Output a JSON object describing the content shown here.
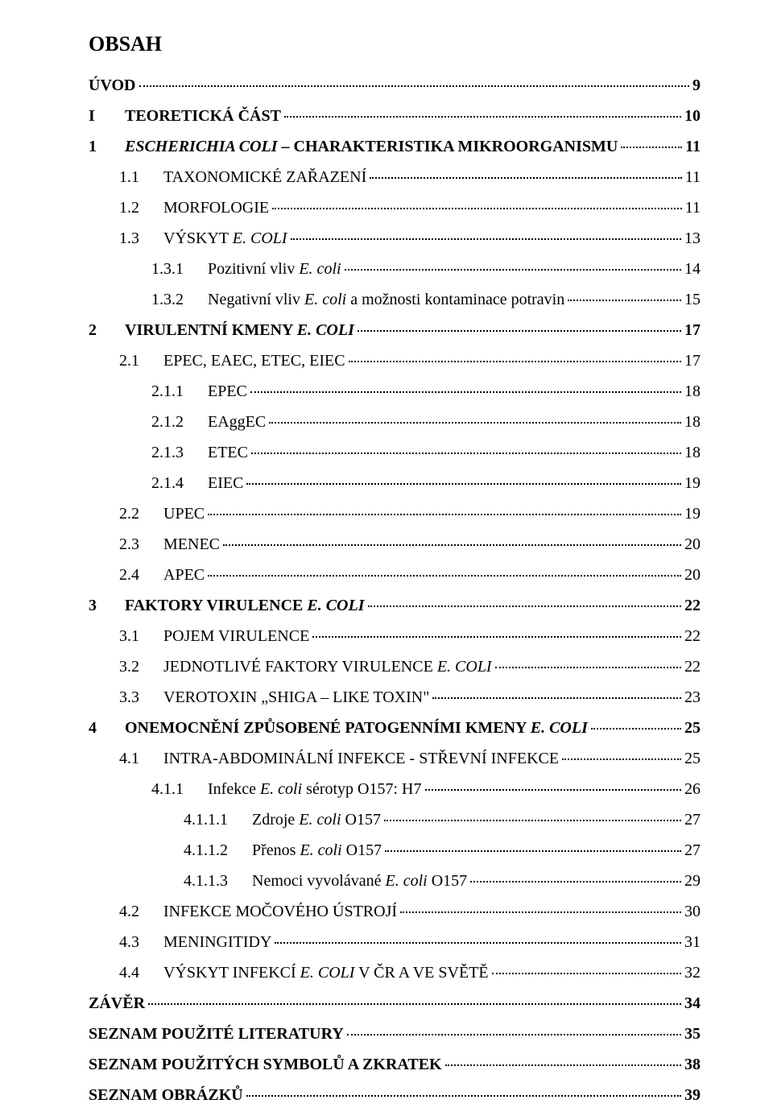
{
  "colors": {
    "text": "#000000",
    "background": "#ffffff"
  },
  "typography": {
    "font_family": "Times New Roman",
    "heading_size": 26,
    "entry_size": 20
  },
  "heading": "OBSAH",
  "entries": [
    {
      "level": "0",
      "num": "",
      "text": "ÚVOD",
      "page": "9",
      "style": "bold"
    },
    {
      "level": "0",
      "num": "I",
      "text": "TEORETICKÁ ČÁST",
      "page": "10",
      "style": "bold"
    },
    {
      "level": "0",
      "num": "1",
      "text": "ESCHERICHIA COLI – CHARAKTERISTIKA MIKROORGANISMU",
      "page": "11",
      "style": "bold-italic"
    },
    {
      "level": "2",
      "num": "1.1",
      "text": "TAXONOMICKÉ ZAŘAZENÍ",
      "page": "11",
      "style": "sc"
    },
    {
      "level": "2",
      "num": "1.2",
      "text": "MORFOLOGIE",
      "page": "11",
      "style": "sc"
    },
    {
      "level": "2",
      "num": "1.3",
      "text": "VÝSKYT E. COLI",
      "page": "13",
      "style": "sc-italic"
    },
    {
      "level": "3",
      "num": "1.3.1",
      "text": "Pozitivní vliv E. coli",
      "page": "14",
      "style": "normal"
    },
    {
      "level": "3",
      "num": "1.3.2",
      "text": "Negativní vliv E. coli a možnosti kontaminace potravin",
      "page": "15",
      "style": "normal"
    },
    {
      "level": "0",
      "num": "2",
      "text": "VIRULENTNÍ KMENY E. COLI",
      "page": "17",
      "style": "bold-italic"
    },
    {
      "level": "2",
      "num": "2.1",
      "text": "EPEC, EAEC, ETEC,  EIEC",
      "page": "17",
      "style": "normal"
    },
    {
      "level": "3",
      "num": "2.1.1",
      "text": "EPEC",
      "page": "18",
      "style": "normal"
    },
    {
      "level": "3",
      "num": "2.1.2",
      "text": "EAggEC",
      "page": "18",
      "style": "normal"
    },
    {
      "level": "3",
      "num": "2.1.3",
      "text": "ETEC",
      "page": "18",
      "style": "normal"
    },
    {
      "level": "3",
      "num": "2.1.4",
      "text": "EIEC",
      "page": "19",
      "style": "normal"
    },
    {
      "level": "2",
      "num": "2.2",
      "text": "UPEC",
      "page": "19",
      "style": "normal"
    },
    {
      "level": "2",
      "num": "2.3",
      "text": "MENEC",
      "page": "20",
      "style": "normal"
    },
    {
      "level": "2",
      "num": "2.4",
      "text": "APEC",
      "page": "20",
      "style": "normal"
    },
    {
      "level": "0",
      "num": "3",
      "text": "FAKTORY VIRULENCE E. COLI",
      "page": "22",
      "style": "bold-italic"
    },
    {
      "level": "2",
      "num": "3.1",
      "text": "POJEM VIRULENCE",
      "page": "22",
      "style": "sc"
    },
    {
      "level": "2",
      "num": "3.2",
      "text": "JEDNOTLIVÉ FAKTORY VIRULENCE E. COLI",
      "page": "22",
      "style": "sc-italic"
    },
    {
      "level": "2",
      "num": "3.3",
      "text": "VEROTOXIN „SHIGA – LIKE TOXIN\"",
      "page": "23",
      "style": "sc"
    },
    {
      "level": "0",
      "num": "4",
      "text": "ONEMOCNĚNÍ ZPŮSOBENÉ PATOGENNÍMI KMENY E. COLI",
      "page": "25",
      "style": "bold-italic"
    },
    {
      "level": "2",
      "num": "4.1",
      "text": "INTRA-ABDOMINÁLNÍ INFEKCE - STŘEVNÍ INFEKCE",
      "page": "25",
      "style": "sc"
    },
    {
      "level": "3",
      "num": "4.1.1",
      "text": "Infekce E. coli sérotyp O157: H7",
      "page": "26",
      "style": "normal"
    },
    {
      "level": "4",
      "num": "4.1.1.1",
      "text": "Zdroje E. coli O157",
      "page": "27",
      "style": "normal"
    },
    {
      "level": "4",
      "num": "4.1.1.2",
      "text": "Přenos E. coli O157",
      "page": "27",
      "style": "normal"
    },
    {
      "level": "4",
      "num": "4.1.1.3",
      "text": "Nemoci vyvolávané E. coli O157",
      "page": "29",
      "style": "normal"
    },
    {
      "level": "2",
      "num": "4.2",
      "text": "INFEKCE MOČOVÉHO ÚSTROJÍ",
      "page": "30",
      "style": "sc"
    },
    {
      "level": "2",
      "num": "4.3",
      "text": "MENINGITIDY",
      "page": "31",
      "style": "sc"
    },
    {
      "level": "2",
      "num": "4.4",
      "text": "VÝSKYT INFEKCÍ E. COLI V ČR A VE SVĚTĚ",
      "page": "32",
      "style": "sc-italic"
    },
    {
      "level": "0",
      "num": "",
      "text": "ZÁVĚR",
      "page": "34",
      "style": "bold"
    },
    {
      "level": "0",
      "num": "",
      "text": "SEZNAM POUŽITÉ LITERATURY",
      "page": "35",
      "style": "bold"
    },
    {
      "level": "0",
      "num": "",
      "text": "SEZNAM POUŽITÝCH SYMBOLŮ A ZKRATEK",
      "page": "38",
      "style": "bold"
    },
    {
      "level": "0",
      "num": "",
      "text": "SEZNAM OBRÁZKŮ",
      "page": "39",
      "style": "bold"
    }
  ]
}
